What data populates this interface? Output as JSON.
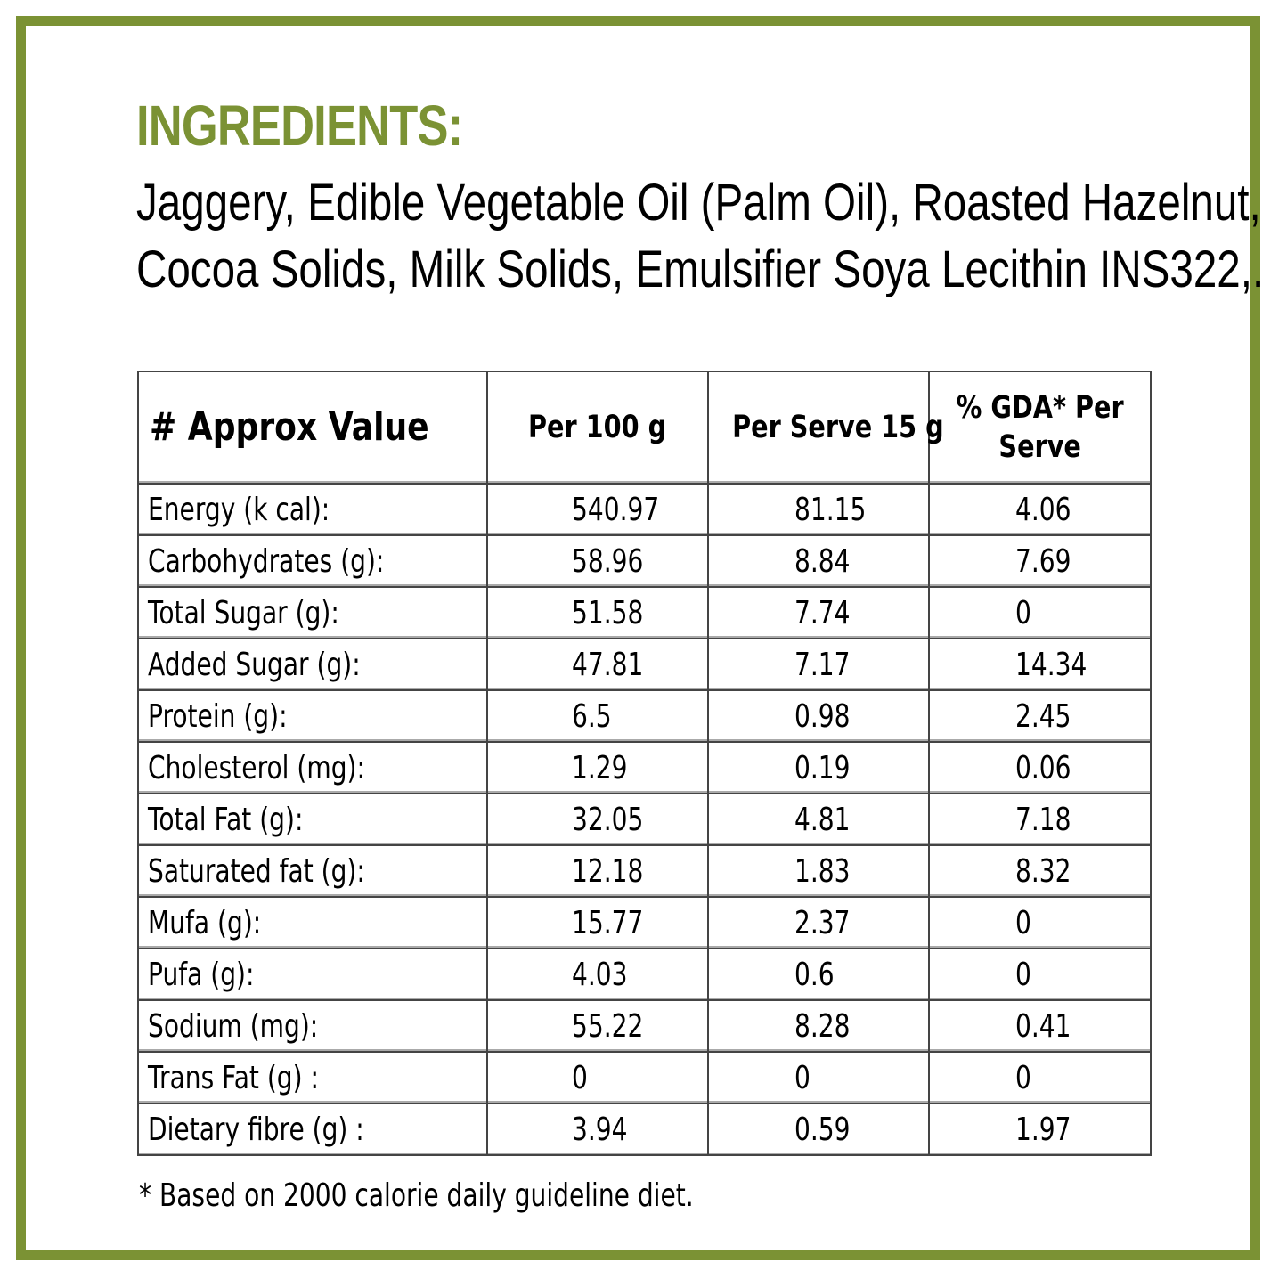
{
  "colors": {
    "accent": "#7b9234"
  },
  "ingredients": {
    "heading": "INGREDIENTS:",
    "lines": [
      "Jaggery, Edible Vegetable Oil (Palm Oil), Roasted Hazelnut,",
      "Cocoa Solids, Milk Solids, Emulsifier Soya Lecithin INS322,."
    ]
  },
  "table": {
    "headers": [
      "# Approx Value",
      "Per 100 g",
      "Per Serve 15 g",
      "% GDA* Per",
      "Serve"
    ],
    "rows": [
      {
        "label": "Energy (k cal):",
        "per100": "540.97",
        "perServe": "81.15",
        "gda": "4.06"
      },
      {
        "label": "Carbohydrates (g):",
        "per100": "58.96",
        "perServe": "8.84",
        "gda": "7.69"
      },
      {
        "label": "Total Sugar (g):",
        "per100": "51.58",
        "perServe": "7.74",
        "gda": "0"
      },
      {
        "label": "Added Sugar (g):",
        "per100": "47.81",
        "perServe": "7.17",
        "gda": "14.34"
      },
      {
        "label": "Protein (g):",
        "per100": "6.5",
        "perServe": "0.98",
        "gda": "2.45"
      },
      {
        "label": "Cholesterol (mg):",
        "per100": "1.29",
        "perServe": "0.19",
        "gda": "0.06"
      },
      {
        "label": "Total Fat (g):",
        "per100": "32.05",
        "perServe": "4.81",
        "gda": "7.18"
      },
      {
        "label": "Saturated fat (g):",
        "per100": "12.18",
        "perServe": "1.83",
        "gda": "8.32"
      },
      {
        "label": "Mufa (g):",
        "per100": "15.77",
        "perServe": "2.37",
        "gda": "0"
      },
      {
        "label": "Pufa (g):",
        "per100": "4.03",
        "perServe": "0.6",
        "gda": "0"
      },
      {
        "label": "Sodium (mg):",
        "per100": "55.22",
        "perServe": "8.28",
        "gda": "0.41"
      },
      {
        "label": "Trans Fat (g) :",
        "per100": "0",
        "perServe": "0",
        "gda": "0"
      },
      {
        "label": "Dietary fibre (g) :",
        "per100": "3.94",
        "perServe": "0.59",
        "gda": "1.97"
      }
    ]
  },
  "footnote": "* Based on 2000 calorie daily guideline diet."
}
